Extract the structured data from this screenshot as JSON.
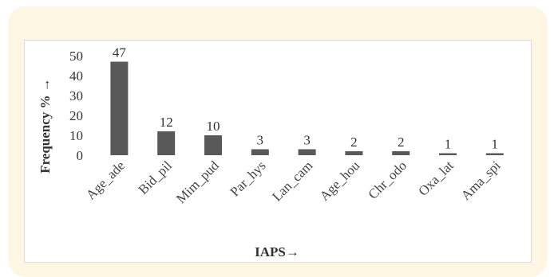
{
  "chart_data": {
    "type": "bar",
    "categories": [
      "Age_ade",
      "Bid_pil",
      "Mim_pud",
      "Par_hys",
      "Lan_cam",
      "Age_hou",
      "Chr_odo",
      "Oxa_lat",
      "Ama_spi"
    ],
    "values": [
      47,
      12,
      10,
      3,
      3,
      2,
      2,
      1,
      1
    ],
    "data_labels": [
      "47",
      "12",
      "10",
      "3",
      "3",
      "2",
      "2",
      "1",
      "1"
    ],
    "title": "",
    "xlabel": "IAPS→",
    "ylabel": "Frequency % →",
    "ylim": [
      0,
      50
    ],
    "yticks": [
      "0",
      "10",
      "20",
      "30",
      "40",
      "50"
    ],
    "grid": false,
    "bar_color": "#595959"
  }
}
